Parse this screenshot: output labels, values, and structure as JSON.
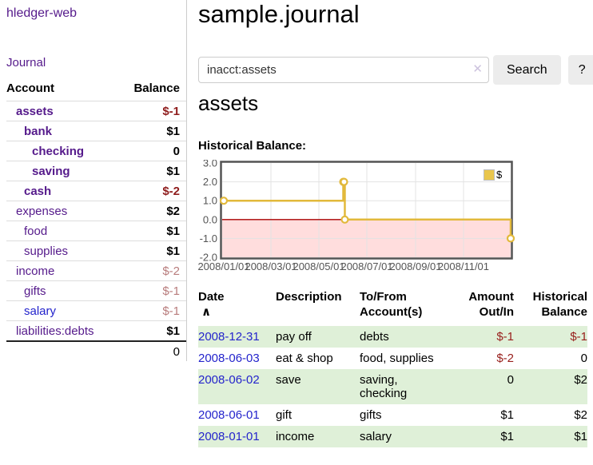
{
  "app": {
    "brand": "hledger-web",
    "nav_journal": "Journal"
  },
  "sidebar": {
    "header": {
      "account": "Account",
      "balance": "Balance"
    },
    "accounts": [
      {
        "name": "assets",
        "balance": "$-1"
      },
      {
        "name": "bank",
        "balance": "$1"
      },
      {
        "name": "checking",
        "balance": "0"
      },
      {
        "name": "saving",
        "balance": "$1"
      },
      {
        "name": "cash",
        "balance": "$-2"
      },
      {
        "name": "expenses",
        "balance": "$2"
      },
      {
        "name": "food",
        "balance": "$1"
      },
      {
        "name": "supplies",
        "balance": "$1"
      },
      {
        "name": "income",
        "balance": "$-2"
      },
      {
        "name": "gifts",
        "balance": "$-1"
      },
      {
        "name": "salary",
        "balance": "$-1"
      },
      {
        "name": "liabilities:debts",
        "balance": "$1"
      }
    ],
    "total": "0"
  },
  "header": {
    "title": "sample.journal"
  },
  "search": {
    "value": "inacct:assets",
    "clear_icon": "✕",
    "search_label": "Search",
    "help_label": "?"
  },
  "account_page": {
    "heading": "assets",
    "chart_title": "Historical Balance:"
  },
  "chart_data": {
    "type": "line",
    "title": "Historical Balance",
    "line_shape": "step-after",
    "ylim": [
      -2,
      3
    ],
    "x_range_days": [
      0,
      365
    ],
    "grid": true,
    "negative_region_color": "#ffdddd",
    "zero_line_color": "#aa0000",
    "legend": {
      "label": "$",
      "position": "top-right",
      "swatch_color": "#e9c64d"
    },
    "y_ticks": [
      {
        "label": "3.0",
        "value": 3
      },
      {
        "label": "2.0",
        "value": 2
      },
      {
        "label": "1.0",
        "value": 1
      },
      {
        "label": "0.0",
        "value": 0
      },
      {
        "label": "-1.0",
        "value": -1
      },
      {
        "label": "-2.0",
        "value": -2
      }
    ],
    "x_ticks": [
      {
        "label": "2008/01/01",
        "day": 0
      },
      {
        "label": "2008/03/01",
        "day": 60
      },
      {
        "label": "2008/05/01",
        "day": 121
      },
      {
        "label": "2008/07/01",
        "day": 182
      },
      {
        "label": "2008/09/01",
        "day": 244
      },
      {
        "label": "2008/11/01",
        "day": 305
      }
    ],
    "series": [
      {
        "name": "$",
        "color": "#e2b93b",
        "points": [
          {
            "date": "2008-01-01",
            "day": 0,
            "value": 1
          },
          {
            "date": "2008-06-01",
            "day": 152,
            "value": 2
          },
          {
            "date": "2008-06-02",
            "day": 153,
            "value": 2
          },
          {
            "date": "2008-06-03",
            "day": 154,
            "value": 0
          },
          {
            "date": "2008-12-31",
            "day": 365,
            "value": -1
          }
        ]
      }
    ]
  },
  "register": {
    "sort_icon": "∧",
    "headers": [
      [
        "Date",
        ""
      ],
      [
        "Description",
        ""
      ],
      [
        "To/From",
        "Account(s)"
      ],
      [
        "Amount",
        "Out/In"
      ],
      [
        "Historical",
        "Balance"
      ]
    ],
    "rows": [
      {
        "date": "2008-12-31",
        "description": "pay off",
        "accounts": "debts",
        "amount": "$-1",
        "balance": "$-1"
      },
      {
        "date": "2008-06-03",
        "description": "eat & shop",
        "accounts": "food, supplies",
        "amount": "$-2",
        "balance": "0"
      },
      {
        "date": "2008-06-02",
        "description": "save",
        "accounts": "saving,\nchecking",
        "amount": "0",
        "balance": "$2"
      },
      {
        "date": "2008-06-01",
        "description": "gift",
        "accounts": "gifts",
        "amount": "$1",
        "balance": "$2"
      },
      {
        "date": "2008-01-01",
        "description": "income",
        "accounts": "salary",
        "amount": "$1",
        "balance": "$1"
      }
    ]
  }
}
